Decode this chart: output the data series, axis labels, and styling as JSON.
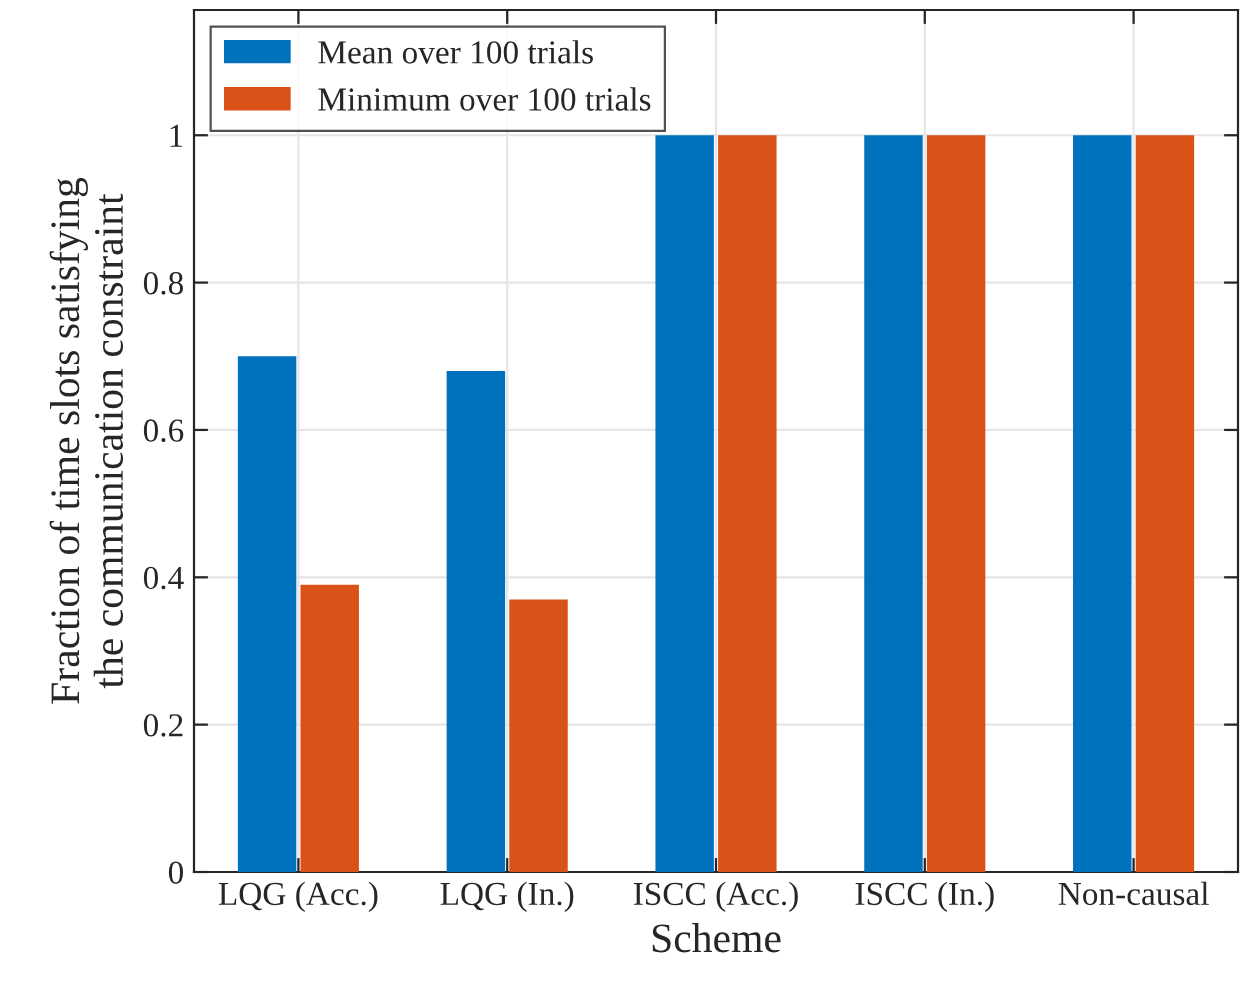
{
  "chart_data": {
    "type": "bar",
    "xlabel": "Scheme",
    "ylabel": "Fraction of time slots satisfying\nthe communication constraint",
    "categories": [
      "LQG (Acc.)",
      "LQG (In.)",
      "ISCC (Acc.)",
      "ISCC (In.)",
      "Non-causal"
    ],
    "series": [
      {
        "name": "Mean over 100 trials",
        "color": "#0072bd",
        "values": [
          0.7,
          0.68,
          1,
          1,
          1
        ]
      },
      {
        "name": "Minimum over 100 trials",
        "color": "#d95319",
        "values": [
          0.39,
          0.37,
          1,
          1,
          1
        ]
      }
    ],
    "ylim": [
      0,
      1.17
    ],
    "yticks": [
      0,
      0.2,
      0.4,
      0.6,
      0.8,
      1
    ],
    "grid": true,
    "legend": "top left"
  }
}
